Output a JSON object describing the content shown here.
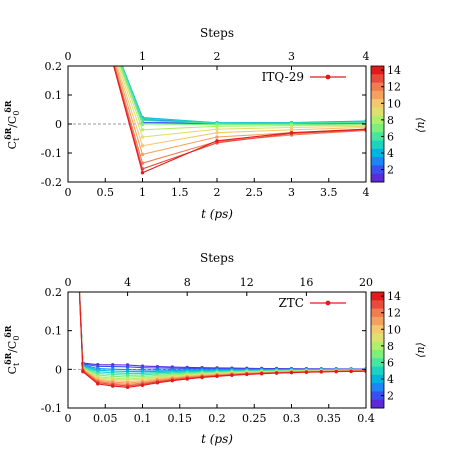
{
  "chart_data": [
    {
      "type": "line",
      "id": "p1",
      "top_axis": {
        "label": "Steps",
        "ticks": [
          "0",
          "1",
          "2",
          "3",
          "4"
        ]
      },
      "xlabel": "t (ps)",
      "ylabel": "C_t^{δR}/C_0^{δR}",
      "xlim": [
        0,
        4
      ],
      "ylim": [
        -0.2,
        0.2
      ],
      "x_ticks": [
        "0",
        "0.5",
        "1",
        "1.5",
        "2",
        "2.5",
        "3",
        "3.5",
        "4"
      ],
      "y_ticks": [
        "0.2",
        "0.1",
        "0",
        "-0.1",
        "-0.2"
      ],
      "reference_line": 0,
      "legend": {
        "label": "ITQ-29",
        "position": "top-right",
        "color": "#e31a1c"
      },
      "colorbar": {
        "label": "⟨n⟩",
        "min": 0.5,
        "max": 14.5,
        "ticks": [
          "14",
          "12",
          "10",
          "8",
          "6",
          "4",
          "2"
        ]
      },
      "x": [
        1,
        2,
        3,
        4
      ],
      "series": [
        {
          "n": 1,
          "color": "#5b2bd9",
          "values": [
            0.0,
            0.0,
            -0.002,
            0.0
          ]
        },
        {
          "n": 2,
          "color": "#3a4ff0",
          "values": [
            0.005,
            0.003,
            0.002,
            0.003
          ]
        },
        {
          "n": 3,
          "color": "#1c86f5",
          "values": [
            0.015,
            0.004,
            0.004,
            0.008
          ]
        },
        {
          "n": 4,
          "color": "#00b4e0",
          "values": [
            0.022,
            0.004,
            0.005,
            0.01
          ]
        },
        {
          "n": 5,
          "color": "#1ed2c2",
          "values": [
            0.02,
            0.003,
            0.002,
            0.009
          ]
        },
        {
          "n": 6,
          "color": "#46e6a0",
          "values": [
            0.012,
            0.002,
            0.003,
            0.006
          ]
        },
        {
          "n": 7,
          "color": "#7cf07a",
          "values": [
            0.0,
            -0.002,
            -0.002,
            0.0
          ]
        },
        {
          "n": 8,
          "color": "#aef06a",
          "values": [
            -0.02,
            -0.008,
            -0.006,
            -0.004
          ]
        },
        {
          "n": 9,
          "color": "#e0e070",
          "values": [
            -0.045,
            -0.018,
            -0.012,
            -0.008
          ]
        },
        {
          "n": 10,
          "color": "#f5c86e",
          "values": [
            -0.075,
            -0.03,
            -0.02,
            -0.012
          ]
        },
        {
          "n": 11,
          "color": "#f4a060",
          "values": [
            -0.105,
            -0.045,
            -0.03,
            -0.018
          ]
        },
        {
          "n": 12,
          "color": "#f07c50",
          "values": [
            -0.135,
            -0.06,
            -0.038,
            -0.022
          ]
        },
        {
          "n": 13,
          "color": "#e84a3c",
          "values": [
            -0.155,
            -0.065,
            -0.033,
            -0.02
          ]
        },
        {
          "n": 14,
          "color": "#e31a1c",
          "values": [
            -0.168,
            -0.058,
            -0.03,
            -0.018
          ]
        }
      ]
    },
    {
      "type": "line",
      "id": "p2",
      "top_axis": {
        "label": "Steps",
        "ticks": [
          "0",
          "4",
          "8",
          "12",
          "16",
          "20"
        ]
      },
      "xlabel": "t (ps)",
      "ylabel": "C_t^{δR}/C_0^{δR}",
      "xlim": [
        0,
        0.4
      ],
      "ylim": [
        -0.1,
        0.2
      ],
      "x_ticks": [
        "0",
        "0.05",
        "0.1",
        "0.15",
        "0.2",
        "0.25",
        "0.3",
        "0.35",
        "0.4"
      ],
      "y_ticks": [
        "0.2",
        "0.1",
        "0",
        "-0.1"
      ],
      "reference_line": 0,
      "legend": {
        "label": "ZTC",
        "position": "top-right",
        "color": "#e31a1c"
      },
      "colorbar": {
        "label": "⟨n⟩",
        "min": 0.5,
        "max": 14.5,
        "ticks": [
          "14",
          "12",
          "10",
          "8",
          "6",
          "4",
          "2"
        ]
      },
      "series": [
        {
          "n": 1,
          "color": "#5b2bd9",
          "amp": 0.012,
          "min_frac": -0.2
        },
        {
          "n": 2,
          "color": "#3a4ff0",
          "amp": 0.01,
          "min_frac": -0.1
        },
        {
          "n": 3,
          "color": "#1c86f5",
          "amp": 0.008,
          "min_frac": 0.05
        },
        {
          "n": 4,
          "color": "#00b4e0",
          "amp": 0.006,
          "min_frac": 0.15
        },
        {
          "n": 5,
          "color": "#1ed2c2",
          "amp": 0.004,
          "min_frac": 0.25
        },
        {
          "n": 6,
          "color": "#46e6a0",
          "amp": 0.002,
          "min_frac": 0.35
        },
        {
          "n": 7,
          "color": "#7cf07a",
          "amp": 0.0,
          "min_frac": 0.45
        },
        {
          "n": 8,
          "color": "#aef06a",
          "amp": -0.002,
          "min_frac": 0.55
        },
        {
          "n": 9,
          "color": "#e0e070",
          "amp": -0.003,
          "min_frac": 0.62
        },
        {
          "n": 10,
          "color": "#f5c86e",
          "amp": -0.004,
          "min_frac": 0.7
        },
        {
          "n": 11,
          "color": "#f4a060",
          "amp": -0.005,
          "min_frac": 0.78
        },
        {
          "n": 12,
          "color": "#f07c50",
          "amp": -0.006,
          "min_frac": 0.86
        },
        {
          "n": 13,
          "color": "#e84a3c",
          "amp": -0.008,
          "min_frac": 0.93
        },
        {
          "n": 14,
          "color": "#e31a1c",
          "amp": -0.01,
          "min_frac": 1.0
        }
      ]
    }
  ]
}
